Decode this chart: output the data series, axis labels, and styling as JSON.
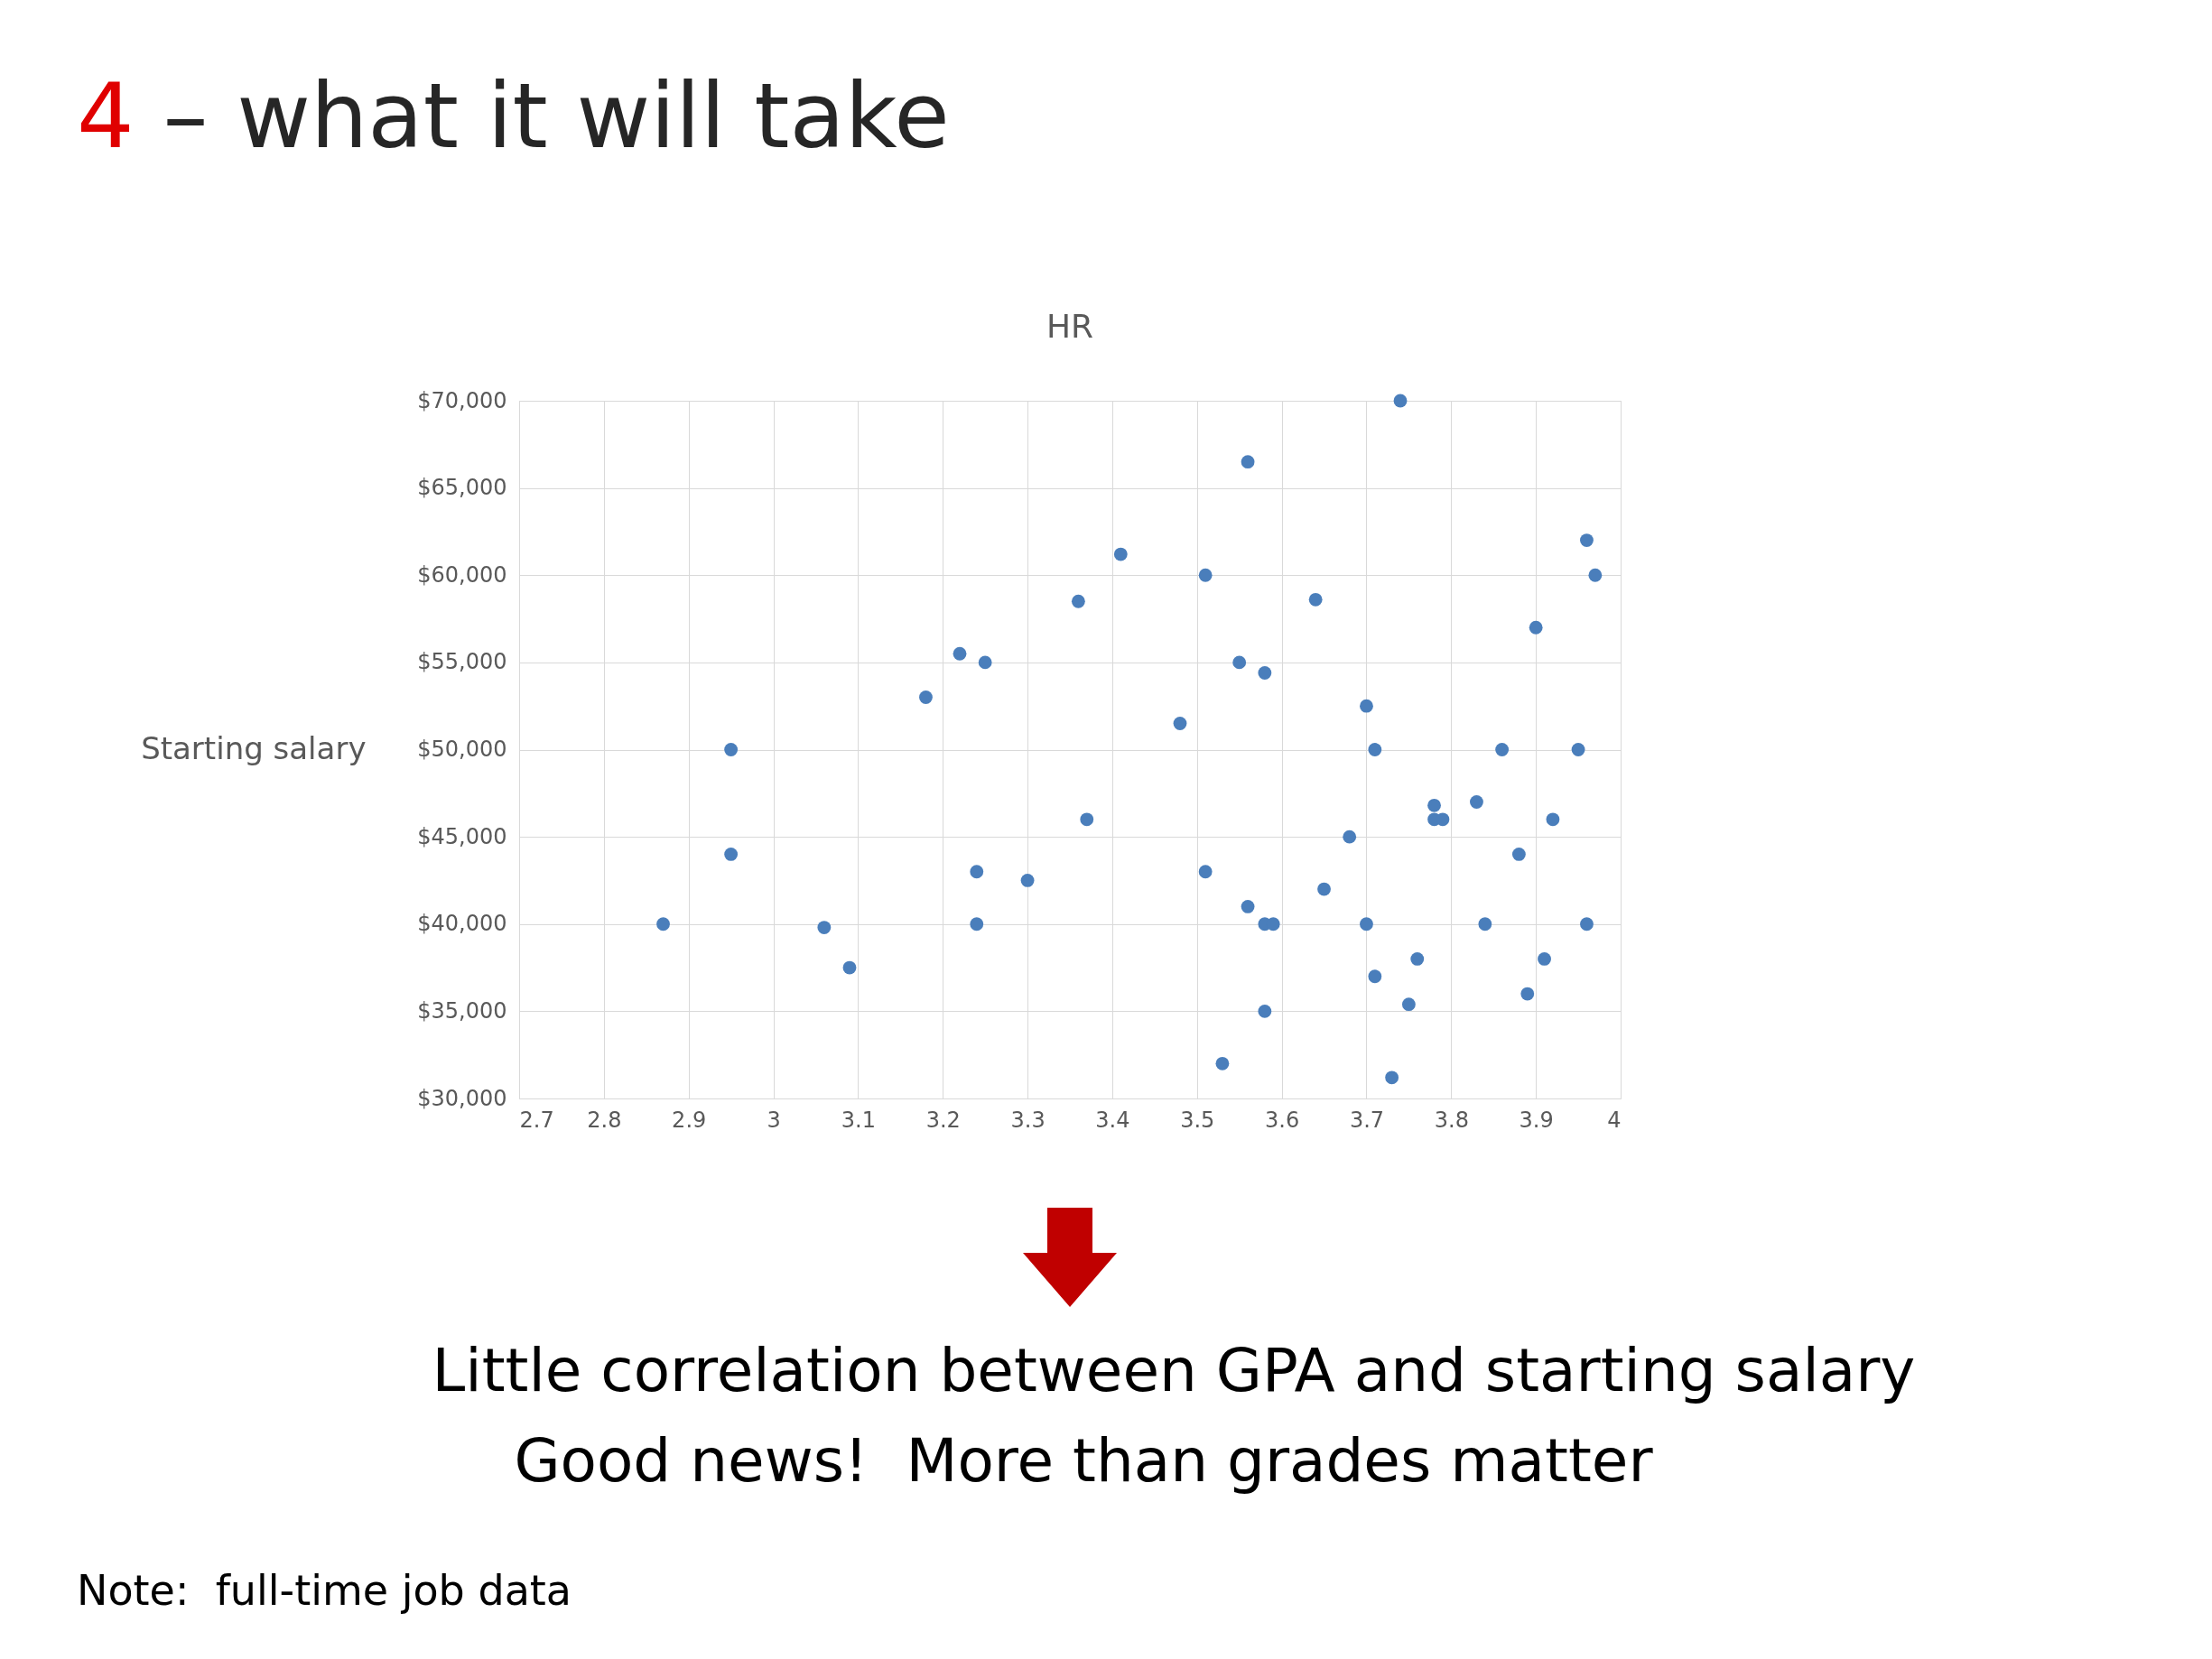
{
  "chart_data": {
    "type": "scatter",
    "title": "4 – what it will take",
    "subtitle": "HR",
    "xlabel": null,
    "ylabel": "Starting salary",
    "annotations": [
      "Little correlation between GPA and starting salary",
      "Good news!  More than grades matter",
      "Note:  full-time job data"
    ],
    "series": [
      {
        "color": "#4a7ebb",
        "x": [
          3.74,
          3.56,
          3.96,
          3.97,
          3.41,
          3.51,
          3.36,
          3.64,
          3.9,
          3.22,
          3.25,
          3.55,
          3.58,
          3.18,
          3.7,
          3.48,
          2.95,
          3.71,
          3.86,
          3.95,
          3.78,
          3.83,
          3.37,
          3.78,
          3.79,
          3.92,
          3.68,
          2.95,
          3.88,
          3.24,
          3.51,
          3.3,
          3.65,
          3.56,
          2.87,
          3.24,
          3.58,
          3.59,
          3.7,
          3.84,
          3.96,
          3.06,
          3.76,
          3.91,
          3.09,
          3.71,
          3.89,
          3.75,
          3.58,
          3.53,
          3.73
        ],
        "values": [
          70000,
          66500,
          62000,
          60000,
          61200,
          60000,
          58500,
          58600,
          57000,
          55500,
          55000,
          55000,
          54400,
          53000,
          52500,
          51500,
          50000,
          50000,
          50000,
          50000,
          46800,
          47000,
          46000,
          46000,
          46000,
          46000,
          45000,
          44000,
          44000,
          43000,
          43000,
          42500,
          42000,
          41000,
          40000,
          40000,
          40000,
          40000,
          40000,
          40000,
          40000,
          39800,
          38000,
          38000,
          37500,
          37000,
          36000,
          35400,
          35000,
          32000,
          31200
        ]
      }
    ],
    "xlim": [
      2.7,
      4
    ],
    "xticks": [
      2.7,
      2.8,
      2.9,
      3,
      3.1,
      3.2,
      3.3,
      3.4,
      3.5,
      3.6,
      3.7,
      3.8,
      3.9,
      4
    ],
    "ylim": [
      30000,
      70000
    ],
    "yticks": [
      {
        "value": 30000,
        "label": "$30,000"
      },
      {
        "value": 35000,
        "label": "$35,000"
      },
      {
        "value": 40000,
        "label": "$40,000"
      },
      {
        "value": 45000,
        "label": "$45,000"
      },
      {
        "value": 50000,
        "label": "$50,000"
      },
      {
        "value": 55000,
        "label": "$55,000"
      },
      {
        "value": 60000,
        "label": "$60,000"
      },
      {
        "value": 65000,
        "label": "$65,000"
      },
      {
        "value": 70000,
        "label": "$70,000"
      }
    ],
    "grid": true,
    "marker": "circle",
    "legend": false
  }
}
